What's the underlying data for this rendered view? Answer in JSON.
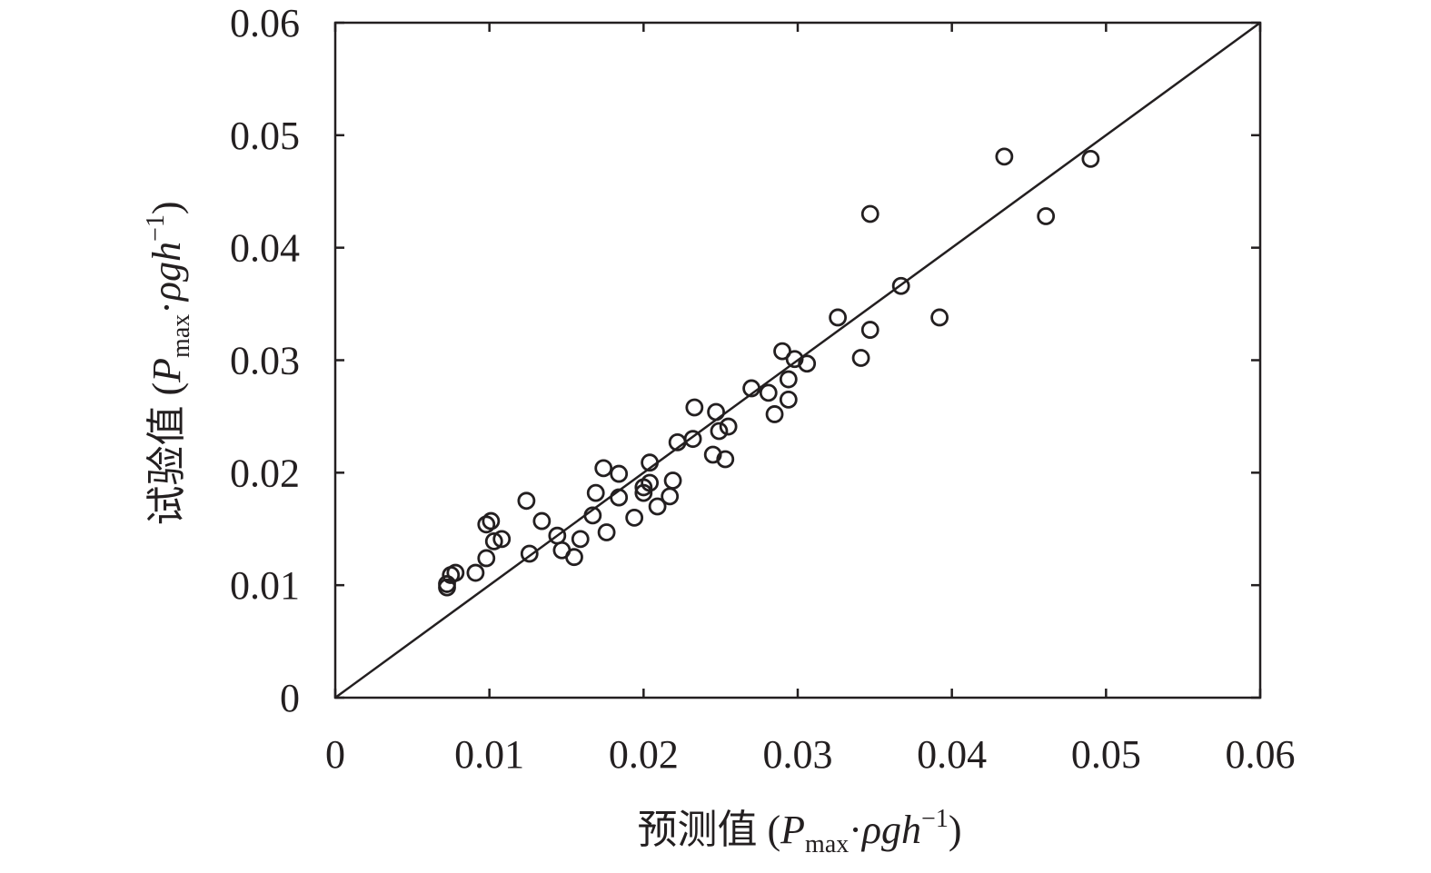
{
  "chart_data": {
    "type": "scatter",
    "title": "",
    "xlabel": {
      "prefix": "预测值 (",
      "var": "P",
      "sub": "max",
      "dot": "·",
      "rest": "ρgh",
      "sup": "−1",
      "suffix": ")"
    },
    "ylabel": {
      "prefix": "试验值 (",
      "var": "P",
      "sub": "max",
      "dot": "·",
      "rest": "ρgh",
      "sup": "−1",
      "suffix": ")"
    },
    "xlim": [
      0,
      0.06
    ],
    "ylim": [
      0,
      0.06
    ],
    "xticks": [
      "0",
      "0.01",
      "0.02",
      "0.03",
      "0.04",
      "0.05",
      "0.06"
    ],
    "yticks": [
      "0",
      "0.01",
      "0.02",
      "0.03",
      "0.04",
      "0.05",
      "0.06"
    ],
    "grid": false,
    "reference_line": {
      "name": "y = x",
      "from": [
        0,
        0
      ],
      "to": [
        0.06,
        0.06
      ]
    },
    "series": [
      {
        "name": "data",
        "marker": "open-circle",
        "color": "#231f20",
        "points": [
          [
            0.00725,
            0.0098
          ],
          [
            0.00725,
            0.0101
          ],
          [
            0.0075,
            0.0109
          ],
          [
            0.0078,
            0.0111
          ],
          [
            0.0091,
            0.0111
          ],
          [
            0.0098,
            0.0124
          ],
          [
            0.0098,
            0.0154
          ],
          [
            0.0101,
            0.0157
          ],
          [
            0.0103,
            0.0139
          ],
          [
            0.0108,
            0.0141
          ],
          [
            0.0124,
            0.0175
          ],
          [
            0.0126,
            0.0128
          ],
          [
            0.0134,
            0.0157
          ],
          [
            0.0144,
            0.0144
          ],
          [
            0.0147,
            0.0131
          ],
          [
            0.0155,
            0.0125
          ],
          [
            0.0159,
            0.0141
          ],
          [
            0.0167,
            0.0162
          ],
          [
            0.0169,
            0.0182
          ],
          [
            0.0174,
            0.0204
          ],
          [
            0.0176,
            0.0147
          ],
          [
            0.0184,
            0.0199
          ],
          [
            0.0184,
            0.0178
          ],
          [
            0.0194,
            0.016
          ],
          [
            0.02,
            0.0182
          ],
          [
            0.02,
            0.0187
          ],
          [
            0.0204,
            0.0191
          ],
          [
            0.0204,
            0.0209
          ],
          [
            0.0209,
            0.017
          ],
          [
            0.0217,
            0.0179
          ],
          [
            0.0219,
            0.0193
          ],
          [
            0.0222,
            0.0227
          ],
          [
            0.0232,
            0.023
          ],
          [
            0.0233,
            0.0258
          ],
          [
            0.0245,
            0.0216
          ],
          [
            0.0247,
            0.0254
          ],
          [
            0.0249,
            0.0237
          ],
          [
            0.0253,
            0.0212
          ],
          [
            0.0255,
            0.0241
          ],
          [
            0.027,
            0.0275
          ],
          [
            0.0281,
            0.0271
          ],
          [
            0.0285,
            0.0252
          ],
          [
            0.029,
            0.0308
          ],
          [
            0.0294,
            0.0283
          ],
          [
            0.0294,
            0.0265
          ],
          [
            0.0298,
            0.0301
          ],
          [
            0.0306,
            0.0297
          ],
          [
            0.0326,
            0.0338
          ],
          [
            0.0341,
            0.0302
          ],
          [
            0.0347,
            0.0327
          ],
          [
            0.0347,
            0.043
          ],
          [
            0.0367,
            0.0366
          ],
          [
            0.0392,
            0.0338
          ],
          [
            0.0434,
            0.0481
          ],
          [
            0.0461,
            0.0428
          ],
          [
            0.049,
            0.0479
          ]
        ]
      }
    ]
  }
}
